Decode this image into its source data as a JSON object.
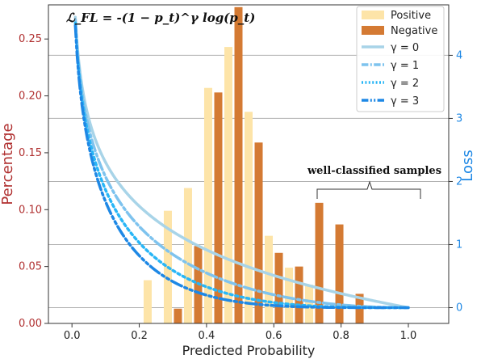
{
  "chart_data": {
    "type": "bar",
    "formula": "ℒ_FL = -(1 − p_t)^γ log(p_t)",
    "xlabel": "Predicted Probability",
    "ylabel_left": "Percentage",
    "ylabel_right": "Loss",
    "annotation": "well-classified samples",
    "x_ticks": [
      "0.0",
      "0.2",
      "0.4",
      "0.6",
      "0.8",
      "1.0"
    ],
    "y_left_ticks": [
      "0.00",
      "0.05",
      "0.10",
      "0.15",
      "0.20",
      "0.25"
    ],
    "y_right_ticks": [
      "0",
      "1",
      "2",
      "3",
      "4"
    ],
    "xlim": [
      -0.07,
      1.12
    ],
    "ylim_left": [
      0.0,
      0.28
    ],
    "ylim_right": [
      -0.25,
      4.8
    ],
    "grid_right": [
      0,
      1,
      2,
      3,
      4
    ],
    "legend_position": "top-right",
    "colors": {
      "positive": "#fde4a8",
      "negative": "#d47a33",
      "left_axis": "#b03030",
      "right_axis": "#1e88e5"
    },
    "bar_series": [
      {
        "name": "Positive",
        "x": [
          0.225,
          0.285,
          0.345,
          0.405,
          0.465,
          0.525,
          0.585,
          0.645,
          0.705,
          0.765,
          0.825
        ],
        "values": [
          0.038,
          0.099,
          0.119,
          0.207,
          0.243,
          0.186,
          0.077,
          0.049,
          0.034,
          0.0,
          0.0
        ]
      },
      {
        "name": "Negative",
        "x": [
          0.255,
          0.315,
          0.375,
          0.435,
          0.495,
          0.555,
          0.615,
          0.675,
          0.735,
          0.795,
          0.855
        ],
        "values": [
          0.0,
          0.013,
          0.068,
          0.203,
          0.278,
          0.159,
          0.062,
          0.05,
          0.106,
          0.087,
          0.026
        ]
      }
    ],
    "line_series": [
      {
        "name": "γ = 0",
        "gamma": 0,
        "style": "solid",
        "color": "#a8d4e8"
      },
      {
        "name": "γ = 1",
        "gamma": 1,
        "style": "dashdot",
        "color": "#7ec3ee"
      },
      {
        "name": "γ = 2",
        "gamma": 2,
        "style": "dotted",
        "color": "#29b6f6"
      },
      {
        "name": "γ = 3",
        "gamma": 3,
        "style": "dashdotdot",
        "color": "#1e88e5"
      }
    ],
    "line_x_range": [
      0.01,
      1.0
    ]
  }
}
